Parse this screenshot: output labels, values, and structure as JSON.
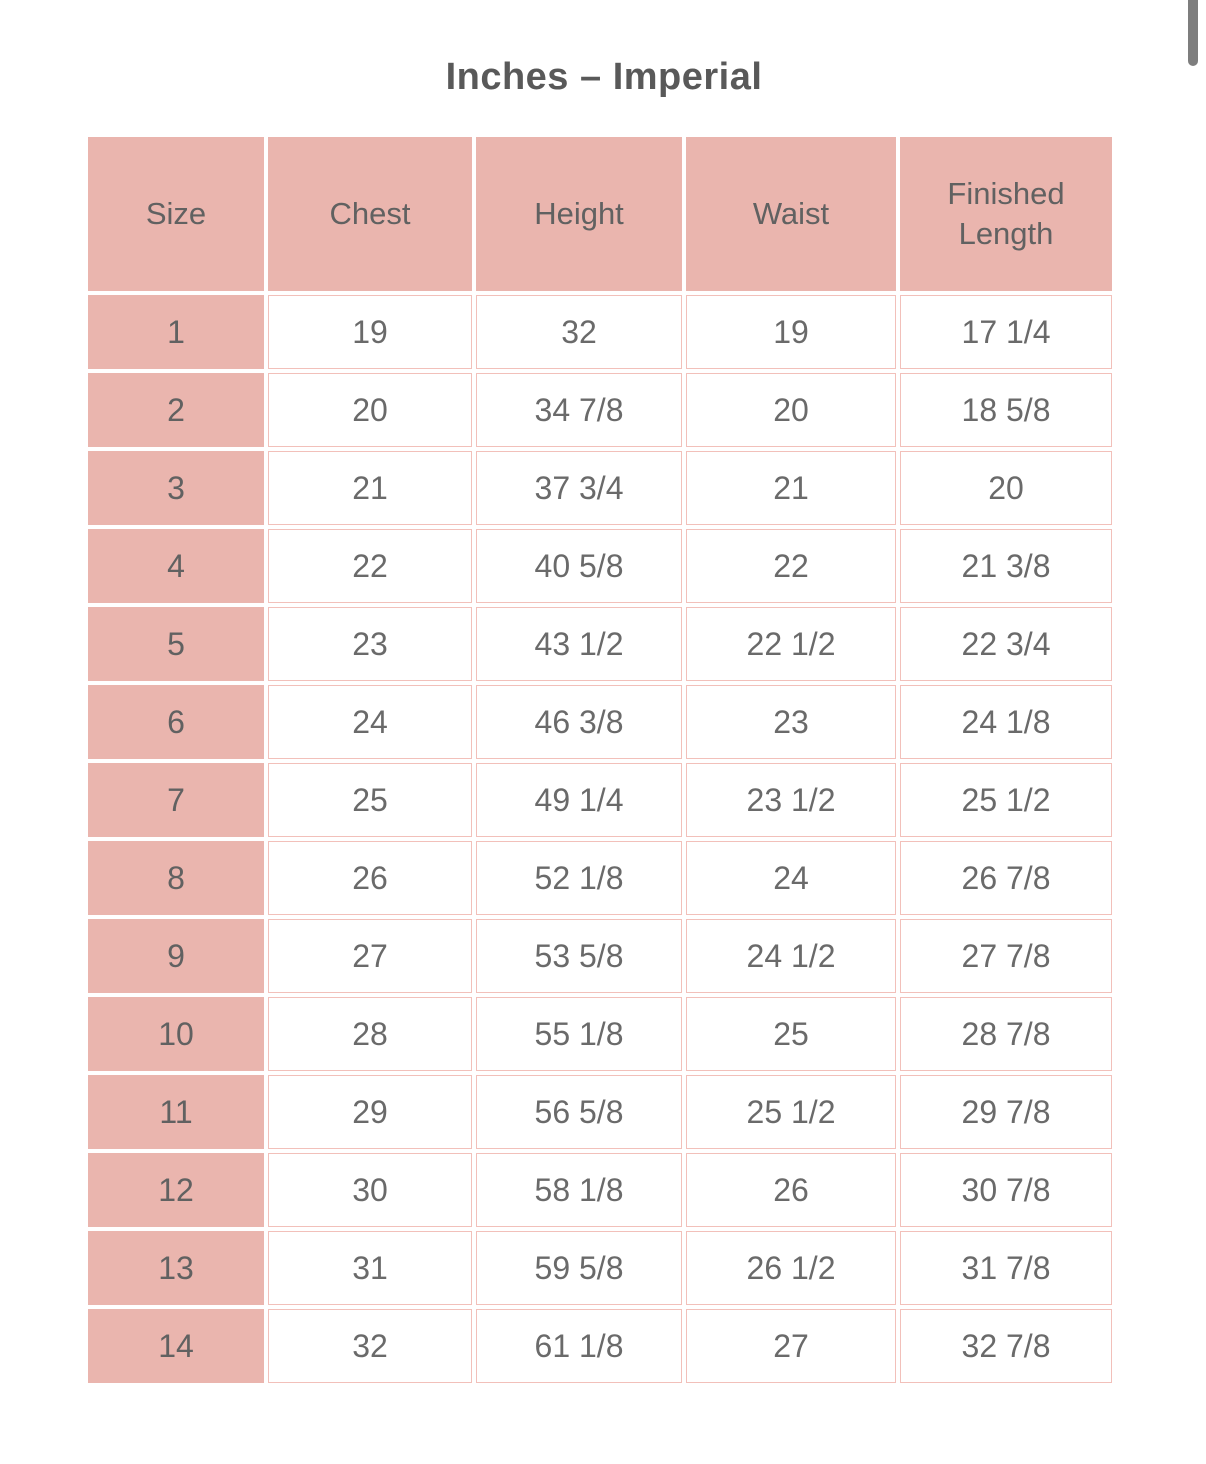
{
  "page": {
    "title": "Inches – Imperial"
  },
  "colors": {
    "cell_pink": "#eab5ae",
    "border_pink": "#f2c0ba",
    "text_gray": "#6a6a6a",
    "title_gray": "#595959",
    "scrollbar_gray": "#7e7e7e"
  },
  "table": {
    "columns": [
      "Size",
      "Chest",
      "Height",
      "Waist",
      "Finished Length"
    ],
    "rows": [
      [
        "1",
        "19",
        "32",
        "19",
        "17 1/4"
      ],
      [
        "2",
        "20",
        "34 7/8",
        "20",
        "18 5/8"
      ],
      [
        "3",
        "21",
        "37 3/4",
        "21",
        "20"
      ],
      [
        "4",
        "22",
        "40 5/8",
        "22",
        "21 3/8"
      ],
      [
        "5",
        "23",
        "43 1/2",
        "22 1/2",
        "22 3/4"
      ],
      [
        "6",
        "24",
        "46 3/8",
        "23",
        "24 1/8"
      ],
      [
        "7",
        "25",
        "49 1/4",
        "23 1/2",
        "25 1/2"
      ],
      [
        "8",
        "26",
        "52 1/8",
        "24",
        "26 7/8"
      ],
      [
        "9",
        "27",
        "53 5/8",
        "24 1/2",
        "27 7/8"
      ],
      [
        "10",
        "28",
        "55 1/8",
        "25",
        "28 7/8"
      ],
      [
        "11",
        "29",
        "56 5/8",
        "25 1/2",
        "29 7/8"
      ],
      [
        "12",
        "30",
        "58 1/8",
        "26",
        "30 7/8"
      ],
      [
        "13",
        "31",
        "59 5/8",
        "26 1/2",
        "31 7/8"
      ],
      [
        "14",
        "32",
        "61 1/8",
        "27",
        "32 7/8"
      ]
    ]
  }
}
